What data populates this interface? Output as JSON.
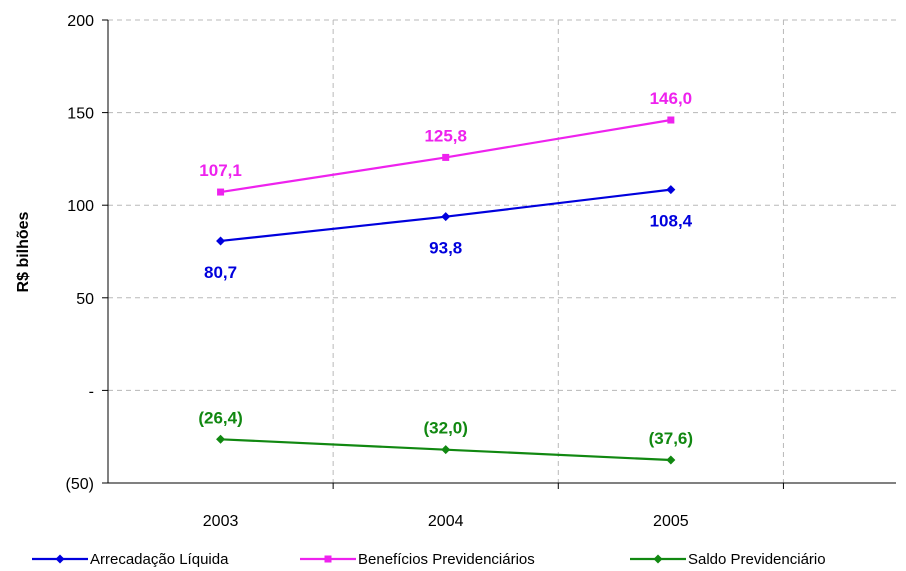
{
  "chart_data": {
    "type": "line",
    "title": "",
    "xlabel": "",
    "ylabel": "R$ bilhões",
    "categories": [
      "2003",
      "2004",
      "2005"
    ],
    "ylim": [
      -50,
      200
    ],
    "yticks": [
      {
        "value": 200,
        "label": "200"
      },
      {
        "value": 150,
        "label": "150"
      },
      {
        "value": 100,
        "label": "100"
      },
      {
        "value": 50,
        "label": "50"
      },
      {
        "value": 0,
        "label": "-"
      },
      {
        "value": -50,
        "label": "(50)"
      }
    ],
    "grid": "dashed",
    "legend_position": "bottom",
    "series": [
      {
        "name": "Arrecadação Líquida",
        "color": "#0000dd",
        "marker": "diamond",
        "values": [
          80.7,
          93.8,
          108.4
        ],
        "labels": [
          "80,7",
          "93,8",
          "108,4"
        ],
        "label_side": "below"
      },
      {
        "name": "Benefícios Previdenciários",
        "color": "#ee22ee",
        "marker": "square",
        "values": [
          107.1,
          125.8,
          146.0
        ],
        "labels": [
          "107,1",
          "125,8",
          "146,0"
        ],
        "label_side": "above"
      },
      {
        "name": "Saldo Previdenciário",
        "color": "#118811",
        "marker": "diamond",
        "values": [
          -26.4,
          -32.0,
          -37.6
        ],
        "labels": [
          "(26,4)",
          "(32,0)",
          "(37,6)"
        ],
        "label_side": "above"
      }
    ]
  }
}
